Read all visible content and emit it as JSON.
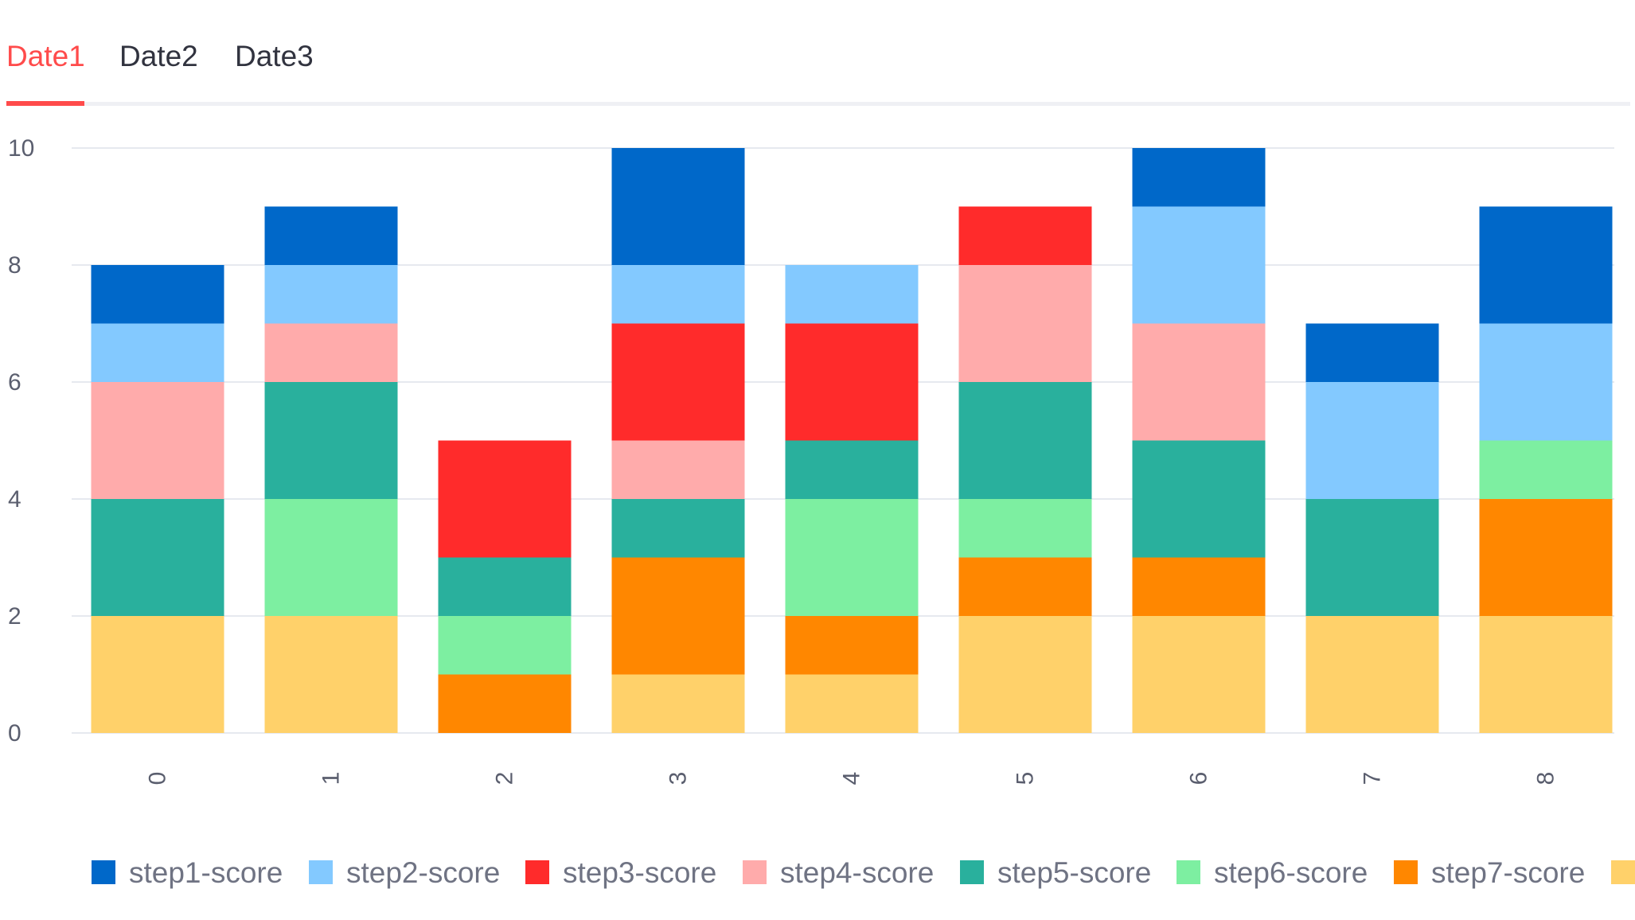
{
  "tabs": [
    {
      "label": "Date1"
    },
    {
      "label": "Date2"
    },
    {
      "label": "Date3"
    }
  ],
  "active_tab": 0,
  "chart_data": {
    "type": "bar",
    "stacked": true,
    "categories": [
      "0",
      "1",
      "2",
      "3",
      "4",
      "5",
      "6",
      "7",
      "8"
    ],
    "ylim": [
      0,
      10
    ],
    "yticks": [
      0,
      2,
      4,
      6,
      8,
      10
    ],
    "grid": "horizontal",
    "x_tick_rotation": -90,
    "legend_position": "bottom",
    "series": [
      {
        "name": "step1-score",
        "color": "#0068c9",
        "values": [
          1,
          1,
          0,
          2,
          0,
          0,
          1,
          1,
          2
        ]
      },
      {
        "name": "step2-score",
        "color": "#83c9ff",
        "values": [
          1,
          1,
          0,
          1,
          1,
          0,
          2,
          2,
          2
        ]
      },
      {
        "name": "step3-score",
        "color": "#ff2b2b",
        "values": [
          0,
          0,
          2,
          2,
          2,
          1,
          0,
          0,
          0
        ]
      },
      {
        "name": "step4-score",
        "color": "#ffabab",
        "values": [
          2,
          1,
          0,
          1,
          0,
          2,
          2,
          0,
          0
        ]
      },
      {
        "name": "step5-score",
        "color": "#29b09d",
        "values": [
          2,
          2,
          1,
          1,
          1,
          2,
          2,
          2,
          0
        ]
      },
      {
        "name": "step6-score",
        "color": "#7defa1",
        "values": [
          0,
          2,
          1,
          0,
          2,
          1,
          0,
          0,
          1
        ]
      },
      {
        "name": "step7-score",
        "color": "#ff8700",
        "values": [
          0,
          0,
          1,
          2,
          1,
          1,
          1,
          0,
          2
        ]
      },
      {
        "name": "",
        "color": "#ffd16a",
        "values": [
          2,
          2,
          0,
          1,
          1,
          2,
          2,
          2,
          2
        ]
      }
    ]
  }
}
